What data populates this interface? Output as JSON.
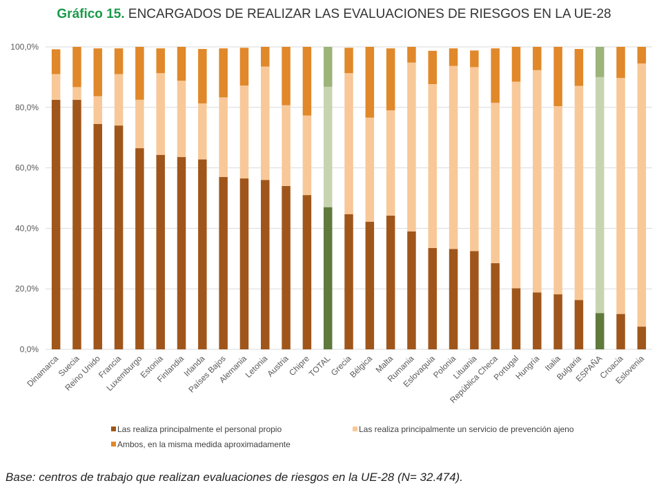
{
  "title": {
    "lead": "Gráfico 15.",
    "text": "ENCARGADOS DE REALIZAR LAS EVALUACIONES DE RIESGOS EN LA UE-28"
  },
  "footnote": "Base: centros de trabajo que realizan evaluaciones de riesgos en la UE-28 (N= 32.474).",
  "colors": {
    "propio": "#a0561a",
    "ajeno": "#f8c898",
    "ambos": "#e0882a",
    "total_propio": "#5f7a3c",
    "total_ajeno": "#c8d4b0",
    "total_ambos": "#9cb47a",
    "grid": "#d9d9d9",
    "axis_text": "#595959"
  },
  "chart_data": {
    "type": "bar",
    "stacked": true,
    "ylim": [
      0,
      100
    ],
    "yticks": [
      "0,0%",
      "20,0%",
      "40,0%",
      "60,0%",
      "80,0%",
      "100,0%"
    ],
    "grid": true,
    "legend_position": "bottom",
    "highlight_categories": [
      "TOTAL",
      "ESPAÑA"
    ],
    "categories": [
      "Dinamarca",
      "Suecia",
      "Reino Unido",
      "Francia",
      "Luxemburgo",
      "Estonia",
      "Finlandia",
      "Irlanda",
      "Países Bajos",
      "Alemania",
      "Letonia",
      "Austria",
      "Chipre",
      "TOTAL",
      "Grecia",
      "Bélgica",
      "Malta",
      "Rumania",
      "Eslovaquia",
      "Polonia",
      "Lituania",
      "República Checa",
      "Portugal",
      "Hungría",
      "Italia",
      "Bulgaria",
      "ESPAÑA",
      "Croacia",
      "Eslovenia"
    ],
    "series": [
      {
        "name": "Las realiza principalmente el personal propio",
        "values": [
          82.5,
          82.5,
          74.5,
          74.0,
          66.5,
          64.3,
          63.6,
          62.8,
          57.0,
          56.5,
          56.0,
          54.0,
          51.0,
          47.0,
          44.7,
          42.2,
          44.2,
          39.0,
          33.5,
          33.2,
          32.5,
          28.5,
          20.2,
          18.8,
          18.2,
          16.3,
          12.0,
          11.7,
          7.5
        ]
      },
      {
        "name": "Las realiza principalmente un servicio de prevención ajeno",
        "values": [
          8.5,
          4.2,
          9.2,
          17.0,
          16.0,
          27.0,
          25.2,
          18.5,
          26.3,
          30.7,
          37.5,
          26.7,
          26.3,
          39.8,
          46.6,
          34.4,
          34.8,
          55.8,
          54.2,
          60.5,
          60.8,
          53.0,
          68.3,
          73.5,
          62.2,
          70.8,
          78.0,
          78.0,
          87.0
        ]
      },
      {
        "name": "Ambos, en la misma medida aproximadamente",
        "values": [
          8.2,
          13.3,
          15.8,
          8.5,
          17.5,
          8.2,
          11.2,
          18.0,
          16.2,
          12.5,
          6.5,
          19.3,
          22.7,
          13.2,
          8.4,
          23.4,
          20.5,
          5.2,
          11.0,
          5.8,
          5.5,
          18.0,
          11.5,
          7.7,
          19.6,
          12.2,
          10.0,
          10.3,
          5.5
        ]
      }
    ]
  }
}
